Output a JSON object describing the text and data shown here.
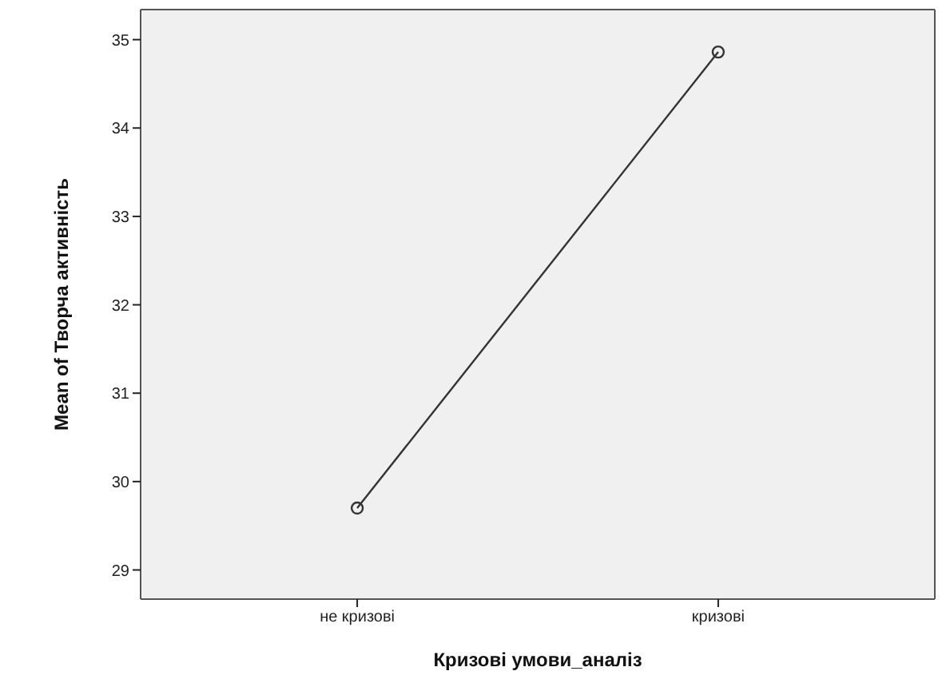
{
  "chart_data": {
    "type": "line",
    "xlabel": "Кризові умови_аналіз",
    "ylabel": "Mean of Творча активність",
    "categories": [
      "не кризові",
      "кризові"
    ],
    "series": [
      {
        "color": "#333333",
        "values": [
          29.7,
          34.86
        ]
      }
    ],
    "ylim": [
      28.67,
      35.34
    ],
    "yticks": [
      29,
      30,
      31,
      32,
      33,
      34,
      35
    ],
    "marker": "circle",
    "line_style": "solid"
  }
}
